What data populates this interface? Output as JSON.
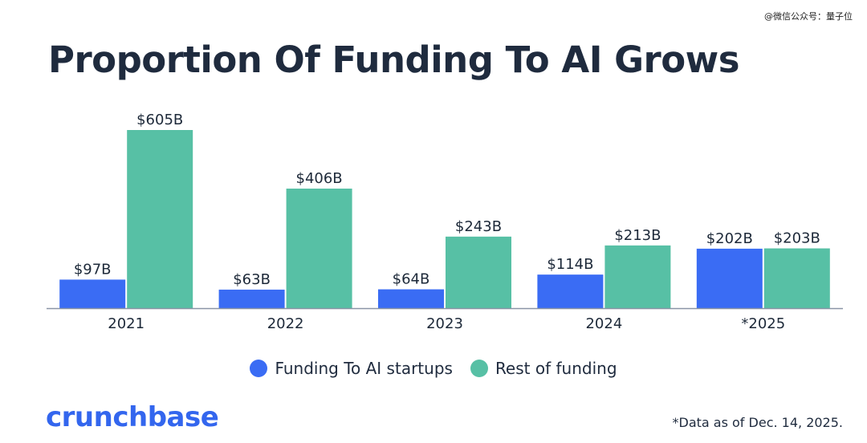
{
  "watermark": "@微信公众号：量子位",
  "brand": {
    "name": "crunchbase",
    "color": "#3366ee"
  },
  "footnote": "*Data as of Dec. 14, 2025.",
  "colors": {
    "ai": "#3a6cf4",
    "rest": "#57c0a5",
    "axis": "#8a94a6"
  },
  "chart_data": {
    "type": "bar",
    "title": "Proportion Of Funding To AI Grows",
    "categories": [
      "2021",
      "2022",
      "2023",
      "2024",
      "*2025"
    ],
    "ylim": [
      0,
      605
    ],
    "grid": false,
    "legend_position": "bottom",
    "series": [
      {
        "name": "Funding To AI startups",
        "values": [
          97,
          63,
          64,
          114,
          202
        ],
        "labels": [
          "$97B",
          "$63B",
          "$64B",
          "$114B",
          "$202B"
        ]
      },
      {
        "name": "Rest of funding",
        "values": [
          605,
          406,
          243,
          213,
          203
        ],
        "labels": [
          "$605B",
          "$406B",
          "$243B",
          "$213B",
          "$203B"
        ]
      }
    ]
  }
}
